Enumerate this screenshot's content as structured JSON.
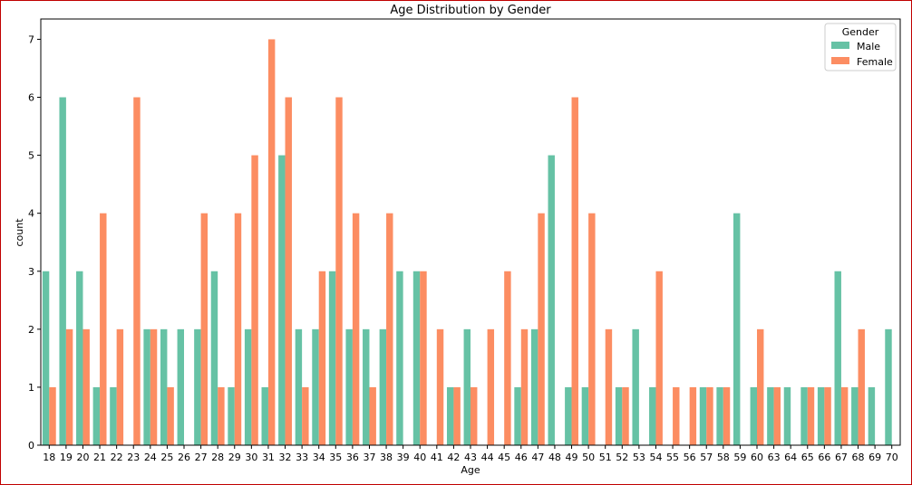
{
  "chart_data": {
    "type": "bar",
    "title": "Age Distribution by Gender",
    "xlabel": "Age",
    "ylabel": "count",
    "ylim": [
      0,
      7.35
    ],
    "yticks": [
      0,
      1,
      2,
      3,
      4,
      5,
      6,
      7
    ],
    "grid": false,
    "legend": {
      "title": "Gender",
      "placement": "top-right"
    },
    "categories": [
      "18",
      "19",
      "20",
      "21",
      "22",
      "23",
      "24",
      "25",
      "26",
      "27",
      "28",
      "29",
      "30",
      "31",
      "32",
      "33",
      "34",
      "35",
      "36",
      "37",
      "38",
      "39",
      "40",
      "41",
      "42",
      "43",
      "44",
      "45",
      "46",
      "47",
      "48",
      "49",
      "50",
      "51",
      "52",
      "53",
      "54",
      "55",
      "56",
      "57",
      "58",
      "59",
      "60",
      "63",
      "64",
      "65",
      "66",
      "67",
      "68",
      "69",
      "70"
    ],
    "series": [
      {
        "name": "Male",
        "color": "#66c2a5",
        "values": [
          3,
          6,
          3,
          1,
          1,
          0,
          2,
          2,
          2,
          2,
          3,
          1,
          2,
          1,
          5,
          2,
          2,
          3,
          2,
          2,
          2,
          3,
          3,
          0,
          1,
          2,
          0,
          0,
          1,
          2,
          5,
          1,
          1,
          0,
          1,
          2,
          1,
          0,
          0,
          1,
          1,
          4,
          1,
          1,
          1,
          1,
          1,
          3,
          1,
          1,
          2
        ]
      },
      {
        "name": "Female",
        "color": "#fc8d62",
        "values": [
          1,
          2,
          2,
          4,
          2,
          6,
          2,
          1,
          0,
          4,
          1,
          4,
          5,
          7,
          6,
          1,
          3,
          6,
          4,
          1,
          4,
          0,
          3,
          2,
          1,
          1,
          2,
          3,
          2,
          4,
          0,
          6,
          4,
          2,
          1,
          0,
          3,
          1,
          1,
          1,
          1,
          0,
          2,
          1,
          0,
          1,
          1,
          1,
          2,
          0,
          0
        ]
      }
    ]
  }
}
